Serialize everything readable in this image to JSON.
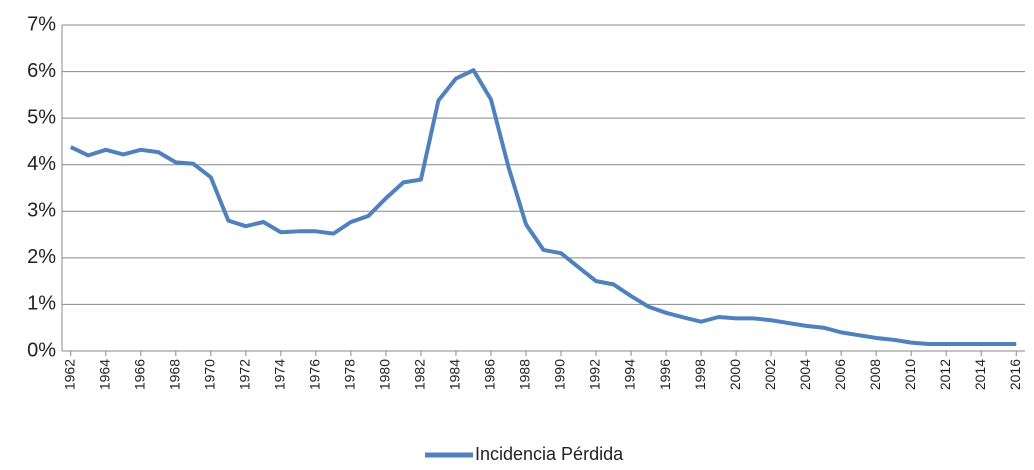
{
  "chart_data": {
    "type": "line",
    "x": [
      1962,
      1963,
      1964,
      1965,
      1966,
      1967,
      1968,
      1969,
      1970,
      1971,
      1972,
      1973,
      1974,
      1975,
      1976,
      1977,
      1978,
      1979,
      1980,
      1981,
      1982,
      1983,
      1984,
      1985,
      1986,
      1987,
      1988,
      1989,
      1990,
      1991,
      1992,
      1993,
      1994,
      1995,
      1996,
      1997,
      1998,
      1999,
      2000,
      2001,
      2002,
      2003,
      2004,
      2005,
      2006,
      2007,
      2008,
      2009,
      2010,
      2011,
      2012,
      2013,
      2014,
      2015,
      2016
    ],
    "series": [
      {
        "name": "Incidencia Pérdida",
        "color": "#4f81bd",
        "values": [
          4.38,
          4.2,
          4.32,
          4.22,
          4.32,
          4.27,
          4.05,
          4.02,
          3.73,
          2.8,
          2.68,
          2.77,
          2.55,
          2.57,
          2.57,
          2.52,
          2.77,
          2.9,
          3.28,
          3.62,
          3.68,
          5.38,
          5.85,
          6.03,
          5.4,
          3.95,
          2.72,
          2.17,
          2.1,
          1.8,
          1.5,
          1.43,
          1.18,
          0.95,
          0.82,
          0.72,
          0.63,
          0.73,
          0.7,
          0.7,
          0.66,
          0.6,
          0.54,
          0.5,
          0.4,
          0.34,
          0.28,
          0.24,
          0.18,
          0.15,
          0.15,
          0.15,
          0.15,
          0.15,
          0.15
        ]
      }
    ],
    "xlim": [
      1961.5,
      2016.5
    ],
    "xticks": [
      1962,
      1964,
      1966,
      1968,
      1970,
      1972,
      1974,
      1976,
      1978,
      1980,
      1982,
      1984,
      1986,
      1988,
      1990,
      1992,
      1994,
      1996,
      1998,
      2000,
      2002,
      2004,
      2006,
      2008,
      2010,
      2012,
      2014,
      2016
    ],
    "ylim": [
      0,
      7
    ],
    "yticks": [
      {
        "value": 0,
        "label": "0%"
      },
      {
        "value": 1,
        "label": "1%"
      },
      {
        "value": 2,
        "label": "2%"
      },
      {
        "value": 3,
        "label": "3%"
      },
      {
        "value": 4,
        "label": "4%"
      },
      {
        "value": 5,
        "label": "5%"
      },
      {
        "value": 6,
        "label": "6%"
      },
      {
        "value": 7,
        "label": "7%"
      }
    ],
    "grid": true,
    "legend": "bottom"
  }
}
